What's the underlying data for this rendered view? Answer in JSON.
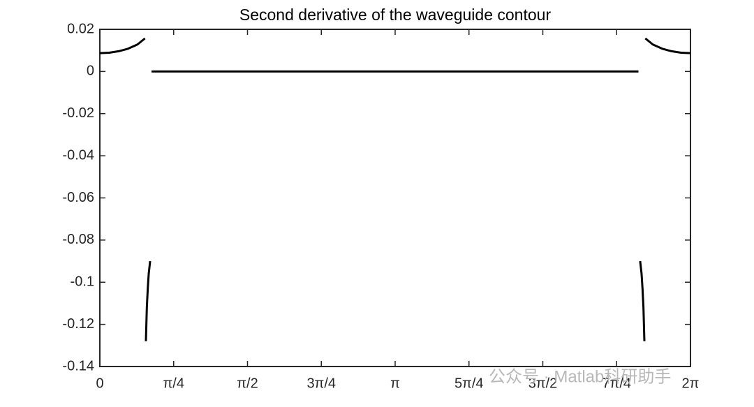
{
  "chart_data": {
    "type": "line",
    "title": "Second derivative of the waveguide contour",
    "watermark": "公众号 · Matlab科研助手",
    "x": [
      0,
      0.1,
      0.2,
      0.3,
      0.4,
      0.48,
      0.485,
      0.49,
      0.5,
      0.51,
      0.52,
      0.535,
      0.54,
      0.55,
      5.73,
      5.74,
      5.748,
      5.763,
      5.773,
      5.783,
      5.793,
      5.798,
      5.803,
      5.883,
      5.983,
      6.083,
      6.183,
      6.2832
    ],
    "series": [
      {
        "color": "#000000",
        "values": [
          0.0087,
          0.0089,
          0.0096,
          0.0108,
          0.0128,
          0.0157,
          null,
          -0.128,
          -0.112,
          -0.103,
          -0.096,
          -0.09,
          null,
          0,
          0,
          null,
          -0.09,
          -0.096,
          -0.103,
          -0.112,
          -0.128,
          null,
          0.0157,
          0.0128,
          0.0108,
          0.0096,
          0.0089,
          0.0087
        ]
      }
    ],
    "xlim": [
      0,
      6.2832
    ],
    "xticks": [
      0,
      {
        "value": 0.7854,
        "label": "π/4"
      },
      {
        "value": 1.5708,
        "label": "π/2"
      },
      {
        "value": 2.3562,
        "label": "3π/4"
      },
      {
        "value": 3.1416,
        "label": "π"
      },
      {
        "value": 3.927,
        "label": "5π/4"
      },
      {
        "value": 4.7124,
        "label": "3π/2"
      },
      {
        "value": 5.4978,
        "label": "7π/4"
      },
      {
        "value": 6.2832,
        "label": "2π"
      }
    ],
    "ylim": [
      -0.14,
      0.02
    ],
    "yticks": [
      0.02,
      0,
      -0.02,
      -0.04,
      -0.06,
      -0.08,
      -0.1,
      -0.12,
      -0.14
    ],
    "grid": false,
    "box": true
  }
}
